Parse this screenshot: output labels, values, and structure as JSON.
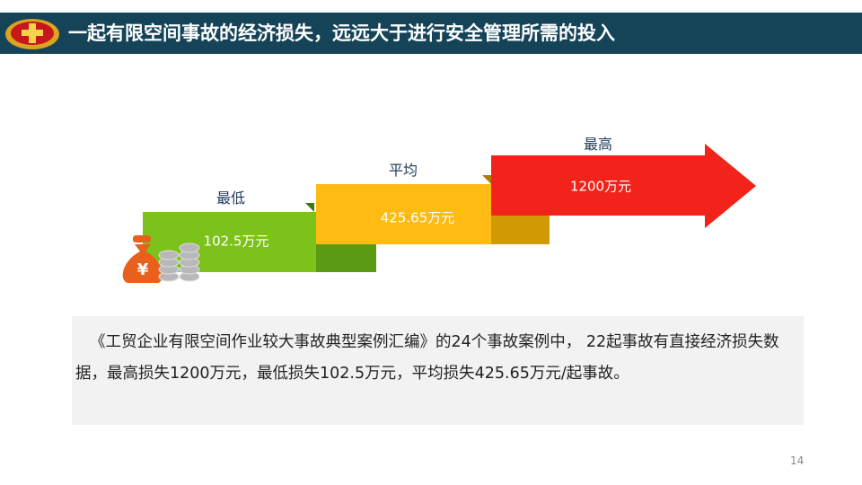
{
  "header": {
    "title": "一起有限空间事故的经济损失，远远大于进行安全管理所需的投入"
  },
  "steps": [
    {
      "label": "最低",
      "value": "102.5万元"
    },
    {
      "label": "平均",
      "value": "425.65万元"
    },
    {
      "label": "最高",
      "value": "1200万元"
    }
  ],
  "note": {
    "text": "《工贸企业有限空间作业较大事故典型案例汇编》的24个事故案例中， 22起事故有直接经济损失数据，最高损失1200万元，最低损失102.5万元，平均损失425.65万元/起事故。"
  },
  "page_number": "14"
}
